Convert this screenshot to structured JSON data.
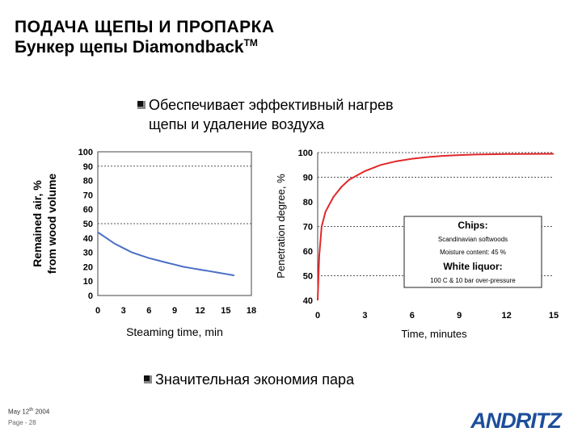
{
  "header": {
    "title_line1": "ПОДАЧА ЩЕПЫ И ПРОПАРКА",
    "title_line2": "Бункер щепы Diamondback",
    "title_tm": "TM"
  },
  "bullets": [
    {
      "line1": "Обеспечивает эффективный нагрев",
      "line2": "щепы и удаление воздуха"
    },
    {
      "line1": "Значительная экономия пара"
    }
  ],
  "footer": {
    "date_prefix": "May 12",
    "date_sup": "th",
    "date_suffix": " 2004",
    "page": "Page - 28"
  },
  "logo_text": "ANDRITZ",
  "colors": {
    "left_series": "#4a6fc4",
    "right_series": "#e0282a",
    "grid": "#555555",
    "logo": "#1d4e9a"
  },
  "chart_data": [
    {
      "type": "line",
      "xlabel": "Steaming time, min",
      "ylabel_line1": "Remained air, %",
      "ylabel_line2": "from wood volume",
      "xlim": [
        0,
        18
      ],
      "ylim": [
        0,
        100
      ],
      "x_ticks": [
        "0",
        "3",
        "6",
        "9",
        "12",
        "15",
        "18"
      ],
      "y_ticks": [
        "0",
        "10",
        "20",
        "30",
        "40",
        "50",
        "60",
        "70",
        "80",
        "90",
        "100"
      ],
      "grid_lines": [
        50,
        90
      ],
      "x": [
        0,
        1,
        2,
        3,
        4,
        5,
        6,
        7,
        8,
        9,
        10,
        11,
        12,
        13,
        14,
        15,
        16
      ],
      "values": [
        44,
        40,
        36,
        33,
        30,
        28,
        26,
        24.5,
        23,
        21.5,
        20,
        19,
        18,
        17,
        16,
        15,
        14
      ]
    },
    {
      "type": "line",
      "xlabel": "Time, minutes",
      "ylabel": "Penetration degree, %",
      "xlim": [
        0,
        15
      ],
      "ylim": [
        40,
        100
      ],
      "x_ticks": [
        "0",
        "3",
        "6",
        "9",
        "12",
        "15"
      ],
      "y_ticks": [
        "40",
        "50",
        "60",
        "70",
        "80",
        "90",
        "100"
      ],
      "grid_lines": [
        50,
        70,
        90,
        100
      ],
      "x": [
        0,
        0.1,
        0.25,
        0.5,
        1,
        1.5,
        2,
        3,
        4,
        5,
        6,
        7,
        8,
        9,
        10,
        12,
        15
      ],
      "values": [
        40,
        58,
        70,
        76,
        82,
        86,
        89,
        92.5,
        95,
        96.5,
        97.5,
        98.2,
        98.7,
        99,
        99.2,
        99.4,
        99.5
      ],
      "annotation": {
        "chips_title": "Chips:",
        "chips_line1": "Scandinavian softwoods",
        "chips_line2": "Moisture content: 45 %",
        "liquor_title": "White liquor:",
        "liquor_line1": "100 C & 10 bar over-pressure"
      }
    }
  ]
}
